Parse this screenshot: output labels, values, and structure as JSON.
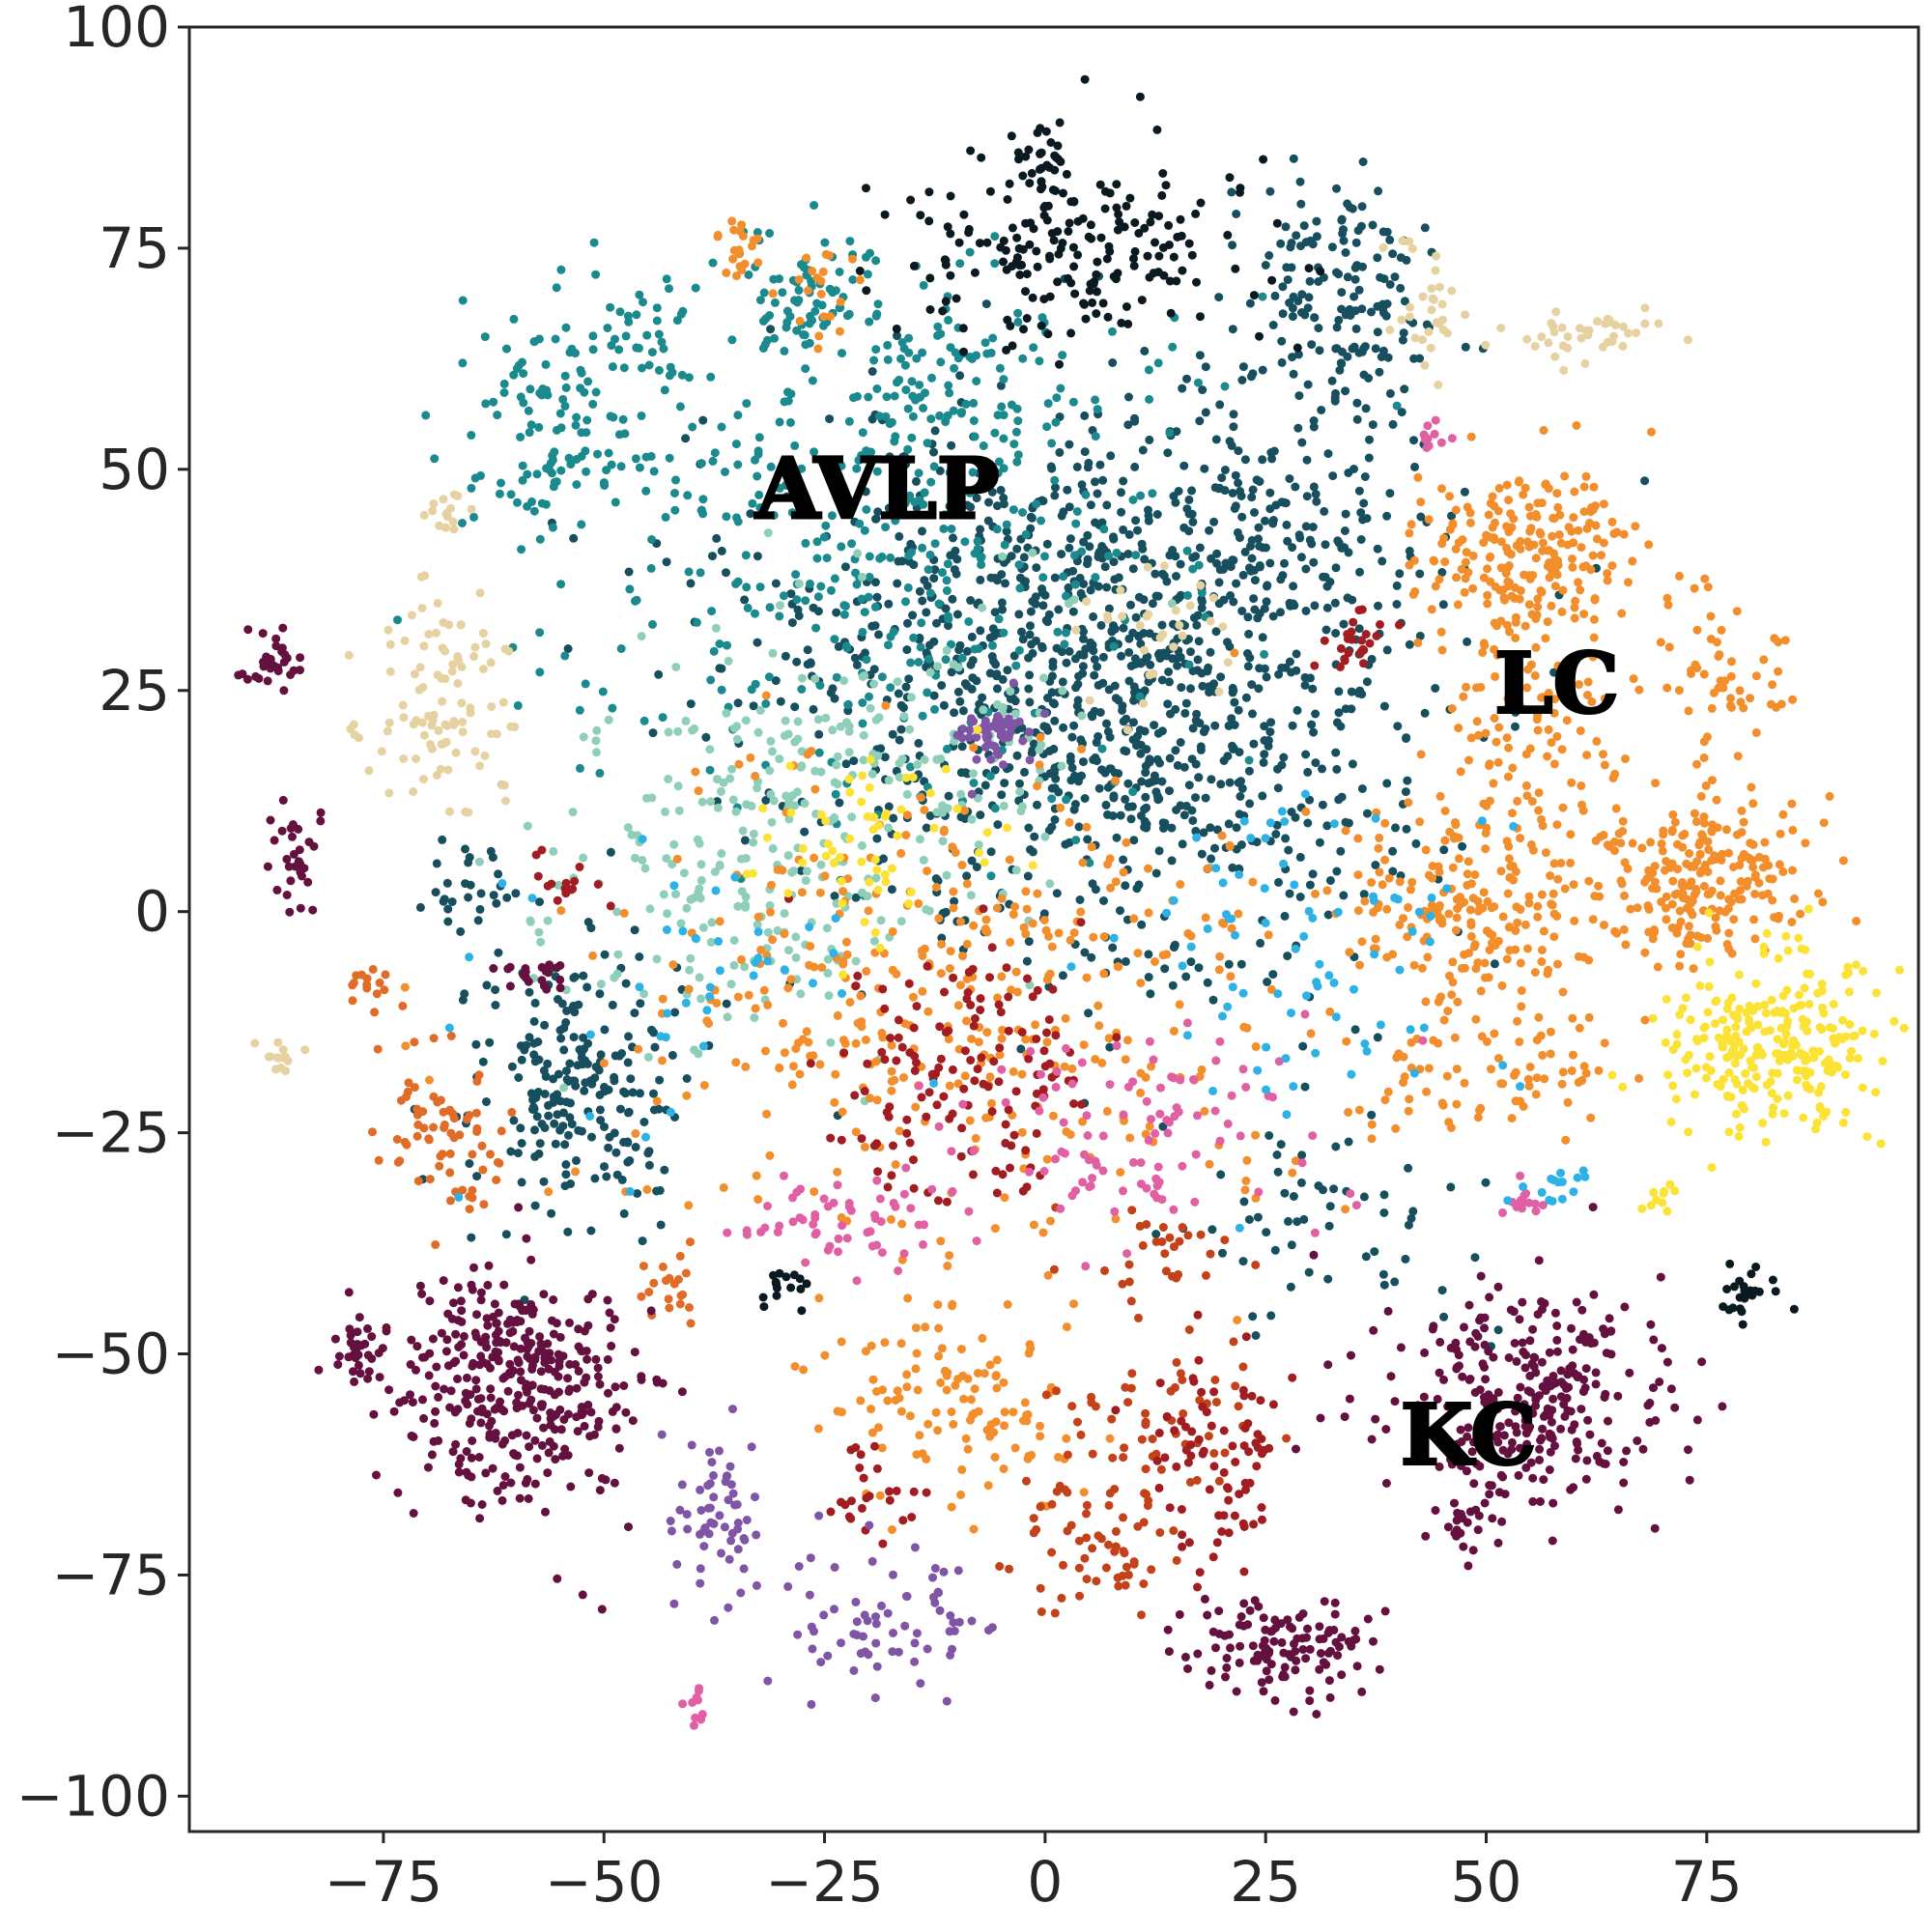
{
  "chart_data": {
    "type": "scatter",
    "title": "",
    "xlabel": "",
    "ylabel": "",
    "xlim": [
      -97,
      99
    ],
    "ylim": [
      -104,
      100
    ],
    "grid": false,
    "legend": "none",
    "x_ticks": [
      {
        "value": -75,
        "label": "−75"
      },
      {
        "value": -50,
        "label": "−50"
      },
      {
        "value": -25,
        "label": "−25"
      },
      {
        "value": 0,
        "label": "0"
      },
      {
        "value": 25,
        "label": "25"
      },
      {
        "value": 50,
        "label": "50"
      },
      {
        "value": 75,
        "label": "75"
      }
    ],
    "y_ticks": [
      {
        "value": 100,
        "label": "100"
      },
      {
        "value": 75,
        "label": "75"
      },
      {
        "value": 50,
        "label": "50"
      },
      {
        "value": 25,
        "label": "25"
      },
      {
        "value": 0,
        "label": "0"
      },
      {
        "value": -25,
        "label": "−25"
      },
      {
        "value": -50,
        "label": "−50"
      },
      {
        "value": -75,
        "label": "−75"
      },
      {
        "value": -100,
        "label": "−100"
      }
    ],
    "annotations": [
      {
        "text": "AVLP",
        "x": -19,
        "y": 47
      },
      {
        "text": "LC",
        "x": 58,
        "y": 25
      },
      {
        "text": "KC",
        "x": 48,
        "y": -60
      }
    ],
    "series": [
      {
        "name": "dark teal",
        "color": "#174f5f",
        "clusters": [
          {
            "cx": 8,
            "cy": 22,
            "sx": 16,
            "sy": 15,
            "n": 900
          },
          {
            "cx": 0,
            "cy": 38,
            "sx": 22,
            "sy": 12,
            "n": 300
          },
          {
            "cx": 33,
            "cy": 70,
            "sx": 5,
            "sy": 7,
            "n": 160
          },
          {
            "cx": -53,
            "cy": -20,
            "sx": 6,
            "sy": 9,
            "n": 220
          },
          {
            "cx": -65,
            "cy": 3,
            "sx": 3,
            "sy": 3,
            "n": 30
          },
          {
            "cx": 25,
            "cy": 45,
            "sx": 10,
            "sy": 10,
            "n": 120
          },
          {
            "cx": 35,
            "cy": -35,
            "sx": 8,
            "sy": 6,
            "n": 60
          }
        ]
      },
      {
        "name": "teal",
        "color": "#1b8a8f",
        "clusters": [
          {
            "cx": -20,
            "cy": 42,
            "sx": 18,
            "sy": 15,
            "n": 400
          },
          {
            "cx": -55,
            "cy": 55,
            "sx": 6,
            "sy": 6,
            "n": 110
          },
          {
            "cx": -27,
            "cy": 70,
            "sx": 4,
            "sy": 4,
            "n": 70
          },
          {
            "cx": -45,
            "cy": 65,
            "sx": 3,
            "sy": 3,
            "n": 30
          },
          {
            "cx": -10,
            "cy": 60,
            "sx": 6,
            "sy": 5,
            "n": 80
          }
        ]
      },
      {
        "name": "mint",
        "color": "#8fcfb9",
        "clusters": [
          {
            "cx": -35,
            "cy": 5,
            "sx": 12,
            "sy": 10,
            "n": 220
          },
          {
            "cx": -15,
            "cy": 20,
            "sx": 10,
            "sy": 8,
            "n": 110
          }
        ]
      },
      {
        "name": "black",
        "color": "#0b1a20",
        "clusters": [
          {
            "cx": 3,
            "cy": 75,
            "sx": 10,
            "sy": 6,
            "n": 200
          },
          {
            "cx": 0,
            "cy": 85,
            "sx": 1.5,
            "sy": 1.5,
            "n": 25
          },
          {
            "cx": 79,
            "cy": -44,
            "sx": 1.5,
            "sy": 1.5,
            "n": 25
          },
          {
            "cx": -30,
            "cy": -42,
            "sx": 2,
            "sy": 1.5,
            "n": 15
          }
        ]
      },
      {
        "name": "orange",
        "color": "#f28e2b",
        "clusters": [
          {
            "cx": 55,
            "cy": 40,
            "sx": 6,
            "sy": 5,
            "n": 220
          },
          {
            "cx": 75,
            "cy": 5,
            "sx": 6,
            "sy": 5,
            "n": 220
          },
          {
            "cx": 50,
            "cy": 0,
            "sx": 8,
            "sy": 6,
            "n": 220
          },
          {
            "cx": 55,
            "cy": 22,
            "sx": 5,
            "sy": 6,
            "n": 90
          },
          {
            "cx": 77,
            "cy": 28,
            "sx": 4,
            "sy": 4,
            "n": 50
          },
          {
            "cx": -10,
            "cy": -10,
            "sx": 20,
            "sy": 14,
            "n": 400
          },
          {
            "cx": 50,
            "cy": -18,
            "sx": 8,
            "sy": 4,
            "n": 80
          },
          {
            "cx": -25,
            "cy": 70,
            "sx": 2,
            "sy": 3,
            "n": 20
          },
          {
            "cx": -35,
            "cy": 75,
            "sx": 1.5,
            "sy": 2,
            "n": 20
          },
          {
            "cx": -15,
            "cy": -52,
            "sx": 6,
            "sy": 5,
            "n": 60
          },
          {
            "cx": -5,
            "cy": -58,
            "sx": 6,
            "sy": 6,
            "n": 60
          }
        ]
      },
      {
        "name": "rust orange",
        "color": "#e06c28",
        "clusters": [
          {
            "cx": -68,
            "cy": -25,
            "sx": 4,
            "sy": 5,
            "n": 70
          },
          {
            "cx": -42,
            "cy": -43,
            "sx": 2,
            "sy": 2,
            "n": 20
          },
          {
            "cx": -77,
            "cy": -8,
            "sx": 1.5,
            "sy": 1.5,
            "n": 15
          }
        ]
      },
      {
        "name": "burnt orange",
        "color": "#c4421a",
        "clusters": [
          {
            "cx": 12,
            "cy": -58,
            "sx": 5,
            "sy": 4,
            "n": 60
          },
          {
            "cx": 5,
            "cy": -72,
            "sx": 5,
            "sy": 4,
            "n": 60
          },
          {
            "cx": 12,
            "cy": -40,
            "sx": 4,
            "sy": 3,
            "n": 30
          }
        ]
      },
      {
        "name": "dark red",
        "color": "#a11d21",
        "clusters": [
          {
            "cx": -10,
            "cy": -18,
            "sx": 8,
            "sy": 8,
            "n": 140
          },
          {
            "cx": 20,
            "cy": -62,
            "sx": 4,
            "sy": 6,
            "n": 80
          },
          {
            "cx": -20,
            "cy": -65,
            "sx": 3,
            "sy": 3,
            "n": 25
          },
          {
            "cx": 35,
            "cy": 30,
            "sx": 2,
            "sy": 2,
            "n": 25
          },
          {
            "cx": -55,
            "cy": 3,
            "sx": 2,
            "sy": 2,
            "n": 15
          }
        ]
      },
      {
        "name": "maroon",
        "color": "#64113f",
        "clusters": [
          {
            "cx": -60,
            "cy": -53,
            "sx": 7,
            "sy": 7,
            "n": 360
          },
          {
            "cx": 55,
            "cy": -55,
            "sx": 8,
            "sy": 6,
            "n": 300
          },
          {
            "cx": 27,
            "cy": -83,
            "sx": 6,
            "sy": 3,
            "n": 120
          },
          {
            "cx": -78,
            "cy": -50,
            "sx": 2,
            "sy": 2,
            "n": 35
          },
          {
            "cx": -87,
            "cy": 28,
            "sx": 2,
            "sy": 2,
            "n": 30
          },
          {
            "cx": -85,
            "cy": 7,
            "sx": 1.5,
            "sy": 4,
            "n": 30
          },
          {
            "cx": -58,
            "cy": -7,
            "sx": 2,
            "sy": 1,
            "n": 20
          },
          {
            "cx": 48,
            "cy": -70,
            "sx": 2,
            "sy": 2,
            "n": 20
          }
        ]
      },
      {
        "name": "pink",
        "color": "#e15fa3",
        "clusters": [
          {
            "cx": 10,
            "cy": -25,
            "sx": 10,
            "sy": 6,
            "n": 100
          },
          {
            "cx": -25,
            "cy": -35,
            "sx": 8,
            "sy": 3,
            "n": 60
          },
          {
            "cx": 54,
            "cy": -33,
            "sx": 1.5,
            "sy": 1,
            "n": 15
          },
          {
            "cx": 44,
            "cy": 54,
            "sx": 1,
            "sy": 1,
            "n": 10
          },
          {
            "cx": -40,
            "cy": -90,
            "sx": 1,
            "sy": 1,
            "n": 10
          }
        ]
      },
      {
        "name": "purple",
        "color": "#8055a6",
        "clusters": [
          {
            "cx": -38,
            "cy": -68,
            "sx": 3,
            "sy": 5,
            "n": 60
          },
          {
            "cx": -20,
            "cy": -80,
            "sx": 6,
            "sy": 4,
            "n": 70
          },
          {
            "cx": -6,
            "cy": 20,
            "sx": 2,
            "sy": 2,
            "n": 50
          }
        ]
      },
      {
        "name": "yellow",
        "color": "#fce234",
        "clusters": [
          {
            "cx": 82,
            "cy": -15,
            "sx": 6,
            "sy": 5,
            "n": 250
          },
          {
            "cx": -20,
            "cy": 8,
            "sx": 8,
            "sy": 6,
            "n": 60
          },
          {
            "cx": 70,
            "cy": -33,
            "sx": 1,
            "sy": 1,
            "n": 10
          }
        ]
      },
      {
        "name": "sky blue",
        "color": "#2eb2e6",
        "clusters": [
          {
            "cx": 30,
            "cy": -5,
            "sx": 10,
            "sy": 10,
            "n": 80
          },
          {
            "cx": 58,
            "cy": -31,
            "sx": 2,
            "sy": 1,
            "n": 15
          },
          {
            "cx": -40,
            "cy": -10,
            "sx": 12,
            "sy": 10,
            "n": 40
          }
        ]
      },
      {
        "name": "beige",
        "color": "#e6d2a1",
        "clusters": [
          {
            "cx": -68,
            "cy": 24,
            "sx": 4,
            "sy": 6,
            "n": 100
          },
          {
            "cx": 62,
            "cy": 65,
            "sx": 4,
            "sy": 1.5,
            "n": 40
          },
          {
            "cx": 43,
            "cy": 68,
            "sx": 2,
            "sy": 4,
            "n": 30
          },
          {
            "cx": -87,
            "cy": -16,
            "sx": 1,
            "sy": 1,
            "n": 15
          },
          {
            "cx": -68,
            "cy": 45,
            "sx": 1.5,
            "sy": 2,
            "n": 15
          },
          {
            "cx": 15,
            "cy": 30,
            "sx": 5,
            "sy": 5,
            "n": 30
          }
        ]
      }
    ]
  }
}
